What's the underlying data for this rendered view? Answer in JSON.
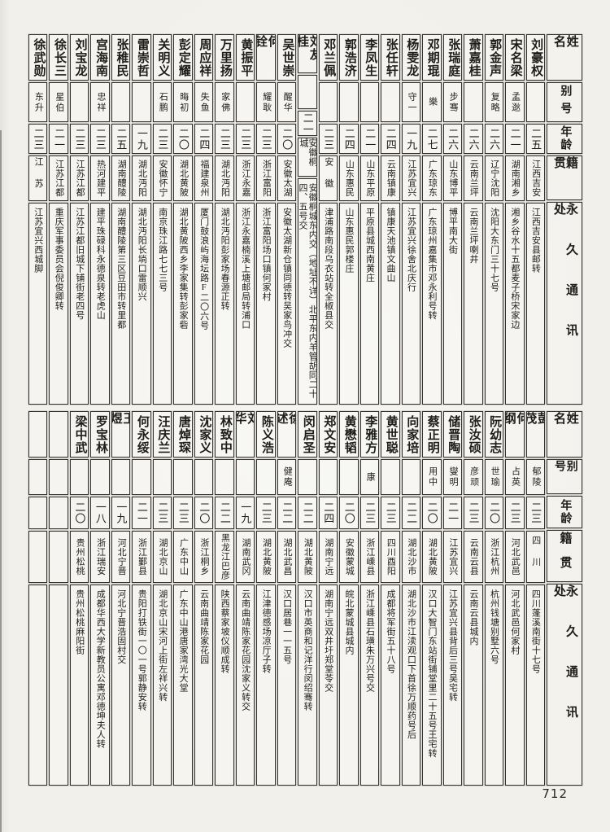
{
  "page_number": "712",
  "column_headers": [
    "姓名",
    "别号",
    "年龄",
    "籍贯",
    "永久通讯处"
  ],
  "colors": {
    "paper": "#f2f0ea",
    "ink": "#1f1d1a",
    "rule": "#35322d"
  },
  "tables": [
    {
      "id": "table-top",
      "persons": [
        {
          "name": "刘豪权",
          "alias": "",
          "age": "二五",
          "native": "江西吉安",
          "address": "江西吉安县邮转"
        },
        {
          "name": "宋名梁",
          "alias": "孟逖",
          "age": "二一",
          "native": "湖南湘乡",
          "address": "湘乡谷水十五都麦子桥宋家边"
        },
        {
          "name": "郭金声",
          "alias": "复略",
          "age": "二六",
          "native": "辽宁沈阳",
          "address": "沈阳大东门三十七号"
        },
        {
          "name": "萧嘉桂",
          "alias": "",
          "age": "二六",
          "native": "云南兰坪",
          "address": "云南兰坪喇井"
        },
        {
          "name": "张瑞庭",
          "alias": "步骞",
          "age": "二六",
          "native": "山东博平",
          "address": "博平南大街"
        },
        {
          "name": "邓期琨",
          "alias": "樂",
          "age": "二七",
          "native": "广东琼东",
          "address": "广东琼州嘉集市邓永利号转"
        },
        {
          "name": "杨雯龙",
          "alias": "守一",
          "age": "一九",
          "native": "江苏宜兴",
          "address": "江苏宜兴徐舍北庆行"
        },
        {
          "name": "张任轩",
          "alias": "",
          "age": "二四",
          "native": "云南镇康",
          "address": "镇康天池镇文曲山"
        },
        {
          "name": "李凤生",
          "alias": "",
          "age": "二一",
          "native": "山东平原",
          "address": "平原县城西南黄庄"
        },
        {
          "name": "郭浩济",
          "alias": "",
          "age": "二四",
          "native": "山东惠民",
          "address": "山东惠民郭楼庄"
        },
        {
          "name": "邓兰佩",
          "alias": "",
          "age": "二三",
          "native": "安徽",
          "address": "津浦路南段乌衣站转全椒县交"
        },
        {
          "name": "刘友桂",
          "alias": "",
          "age": "二一",
          "native": "安徽桐城",
          "address": "安徽桐城东内交（地址不详）北平东内羊管胡同二十四、五号交"
        },
        {
          "name": "吴世崇",
          "alias": "醒华",
          "age": "二〇",
          "native": "安徽太湖",
          "address": "安徽太湖新仓镇同德转吴家鸟冲交"
        },
        {
          "name": "何铨",
          "alias": "耀耿",
          "age": "二三",
          "native": "浙江富阳",
          "address": "浙江富阳场口镇何家村"
        },
        {
          "name": "黄振平",
          "alias": "",
          "age": "二三",
          "native": "浙江永嘉",
          "address": "浙江永嘉楠溪上塘邮局转浦口"
        },
        {
          "name": "万里扬",
          "alias": "家佛",
          "age": "二三",
          "native": "湖北沔阳",
          "address": "湖北沔阳彭家场春源正转"
        },
        {
          "name": "周应祥",
          "alias": "失鱼",
          "age": "二四",
          "native": "福建泉州",
          "address": "厦门鼓浪屿海坛路F二〇六号"
        },
        {
          "name": "彭定耀",
          "alias": "晦初",
          "age": "二〇",
          "native": "湖北黄陂",
          "address": "湖北黄陂西乡李家集转彭家砦"
        },
        {
          "name": "关明义",
          "alias": "石鹏",
          "age": "二三",
          "native": "安徽怀宁",
          "address": "南京珠江路七七三号"
        },
        {
          "name": "雷崇哲",
          "alias": "",
          "age": "一九",
          "native": "湖北沔阳",
          "address": "湖北沔阳长埫口雷顺兴"
        },
        {
          "name": "张稚民",
          "alias": "",
          "age": "二五",
          "native": "湖南醴陵",
          "address": "湖南醴陵第三区豆田市转里都"
        },
        {
          "name": "宫海南",
          "alias": "忠祥",
          "age": "二三",
          "native": "热河建平",
          "address": "建平珠碌科永德泉转老虎山"
        },
        {
          "name": "刘宝龙",
          "alias": "",
          "age": "二三",
          "native": "江苏江都",
          "address": "江苏江都旧城下铺街老四号"
        },
        {
          "name": "徐长三",
          "alias": "星伯",
          "age": "二一",
          "native": "江苏江都",
          "address": "重庆军事委员会倪俊卿转"
        },
        {
          "name": "徐武勋",
          "alias": "东升",
          "age": "二三",
          "native": "江苏",
          "address": "江苏宜兴西城脚"
        }
      ]
    },
    {
      "id": "table-bottom",
      "persons": [
        {
          "name": "彭茂",
          "alias": "郁陵",
          "age": "二三",
          "native": "四川",
          "address": "四川蓬溪南街十七号"
        },
        {
          "name": "何纲",
          "alias": "占英",
          "age": "二三",
          "native": "河北武邑",
          "address": "河北武邑何家村"
        },
        {
          "name": "阮幼志",
          "alias": "世瑜",
          "age": "二〇",
          "native": "浙江杭州",
          "address": "杭州钱塘别墅六号"
        },
        {
          "name": "张汝硕",
          "alias": "彦顽",
          "age": "二三",
          "native": "云南云县",
          "address": "云南云县城内"
        },
        {
          "name": "储晋陶",
          "alias": "燮明",
          "age": "二一",
          "native": "江苏宜兴",
          "address": "江苏宜兴县背后三号吴宅转"
        },
        {
          "name": "蔡正明",
          "alias": "用中",
          "age": "二〇",
          "native": "湖北黄陂",
          "address": "汉口大智门东站街铺堂里二十五号王宅转"
        },
        {
          "name": "向家培",
          "alias": "",
          "age": "二二",
          "native": "湖北沙市",
          "address": "湖北沙市江渎观口下首徐万顺药号后"
        },
        {
          "name": "黄世聪",
          "alias": "",
          "age": "二三",
          "native": "四川酉阳",
          "address": "成都将军街五十八号"
        },
        {
          "name": "李雅方",
          "alias": "康",
          "age": "二三",
          "native": "浙江嵊县",
          "address": "浙江嵊县石璜朱万兴号交"
        },
        {
          "name": "黄懋韬",
          "alias": "",
          "age": "二〇",
          "native": "安徽蒙城",
          "address": "皖北蒙城县城内"
        },
        {
          "name": "郑文安",
          "alias": "",
          "age": "二四",
          "native": "湖南宁远",
          "address": "湖南宁远双井圩郑堂苓交"
        },
        {
          "name": "闵启圣",
          "alias": "",
          "age": "二二",
          "native": "湖北黄陂",
          "address": "汉口市英商和记洋行闵绍骞转"
        },
        {
          "name": "徐述",
          "alias": "健庵",
          "age": "二二",
          "native": "湖北武昌",
          "address": "汉口居巷一一五号"
        },
        {
          "name": "陈义浩",
          "alias": "",
          "age": "二三",
          "native": "湖北黄陂",
          "address": "江津德感场凉厅子转"
        },
        {
          "name": "刘华",
          "alias": "",
          "age": "一九",
          "native": "湖南武冈",
          "address": "云南曲靖陈家花园沈家义转交"
        },
        {
          "name": "林致中",
          "alias": "",
          "age": "二二",
          "native": "黑龙江巴彦",
          "address": "陕西蔡家坡仪顺成转"
        },
        {
          "name": "沈家义",
          "alias": "",
          "age": "二〇",
          "native": "浙江桐乡",
          "address": "云南曲靖陈家花园"
        },
        {
          "name": "唐焯琛",
          "alias": "",
          "age": "二三",
          "native": "广东中山",
          "address": "广东中山港唐家湾光大堂"
        },
        {
          "name": "汪庆兰",
          "alias": "",
          "age": "二三",
          "native": "湖北京山",
          "address": "湖北京山宋河上街左祥兴转"
        },
        {
          "name": "何永绥",
          "alias": "",
          "age": "二一",
          "native": "浙江鄞县",
          "address": "贵阳打铁街一〇一号郭静安转"
        },
        {
          "name": "王煜",
          "alias": "",
          "age": "一九",
          "native": "河北宁晋",
          "address": "河北宁晋浩固村交"
        },
        {
          "name": "罗宝林",
          "alias": "",
          "age": "一八",
          "native": "浙江瑞安",
          "address": "成都华西大学新教员公寓邓德坤夫人转"
        },
        {
          "name": "梁中武",
          "alias": "",
          "age": "二〇",
          "native": "贵州松桃",
          "address": "贵州松桃麻阳街"
        },
        {
          "name": "",
          "alias": "",
          "age": "",
          "native": "",
          "address": ""
        },
        {
          "name": "",
          "alias": "",
          "age": "",
          "native": "",
          "address": ""
        }
      ]
    }
  ]
}
